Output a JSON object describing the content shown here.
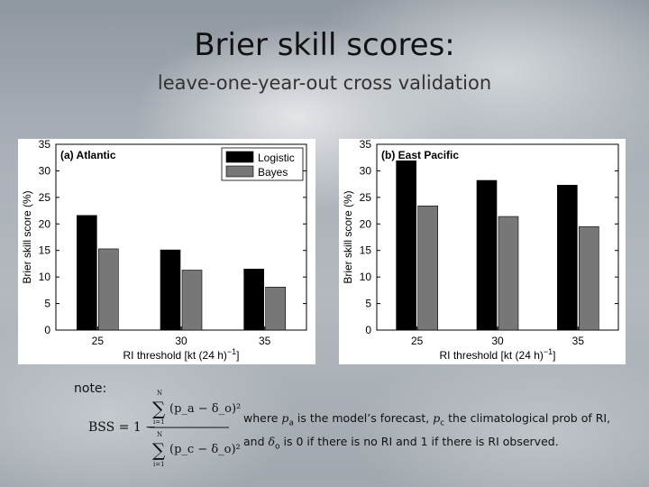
{
  "slide": {
    "title": "Brier skill scores:",
    "subtitle": "leave-one-year-out cross validation",
    "note_label": "note:",
    "explanation": {
      "t1": "where ",
      "pa": "p",
      "pa_sub": "a",
      "t2": " is the model’s forecast, ",
      "pc": "p",
      "pc_sub": "c",
      "t3": " the climatological prob of RI, and ",
      "delta": "δ",
      "delta_sub": "o",
      "t4": " is 0 if there is no RI and 1 if there is RI observed."
    },
    "formula": {
      "lhs": "BSS = 1 −",
      "sum_top": "N",
      "sum_bottom": "i=1",
      "numerator": "(p_a − δ_o)²",
      "denominator": "(p_c − δ_o)²"
    }
  },
  "chart_data": [
    {
      "type": "bar",
      "panel_label": "(a) Atlantic",
      "categories": [
        "25",
        "30",
        "35"
      ],
      "series": [
        {
          "name": "Logistic",
          "color": "#000000",
          "values": [
            21.6,
            15.1,
            11.5
          ]
        },
        {
          "name": "Bayes",
          "color": "#777777",
          "values": [
            15.3,
            11.3,
            8.1
          ]
        }
      ],
      "xlabel": "RI threshold [kt (24 h)",
      "xlabel_sup": "−1",
      "xlabel_end": "]",
      "ylabel": "Brier skill score (%)",
      "ylim": [
        0,
        35
      ],
      "yticks": [
        0,
        5,
        10,
        15,
        20,
        25,
        30,
        35
      ],
      "legend": "top-right",
      "grid": false
    },
    {
      "type": "bar",
      "panel_label": "(b) East Pacific",
      "categories": [
        "25",
        "30",
        "35"
      ],
      "series": [
        {
          "name": "Logistic",
          "color": "#000000",
          "values": [
            31.9,
            28.2,
            27.3
          ]
        },
        {
          "name": "Bayes",
          "color": "#777777",
          "values": [
            23.4,
            21.4,
            19.5
          ]
        }
      ],
      "xlabel": "RI threshold [kt (24 h)",
      "xlabel_sup": "−1",
      "xlabel_end": "]",
      "ylabel": "Brier skill score (%)",
      "ylim": [
        0,
        35
      ],
      "yticks": [
        0,
        5,
        10,
        15,
        20,
        25,
        30,
        35
      ],
      "legend": "none",
      "grid": false
    }
  ]
}
